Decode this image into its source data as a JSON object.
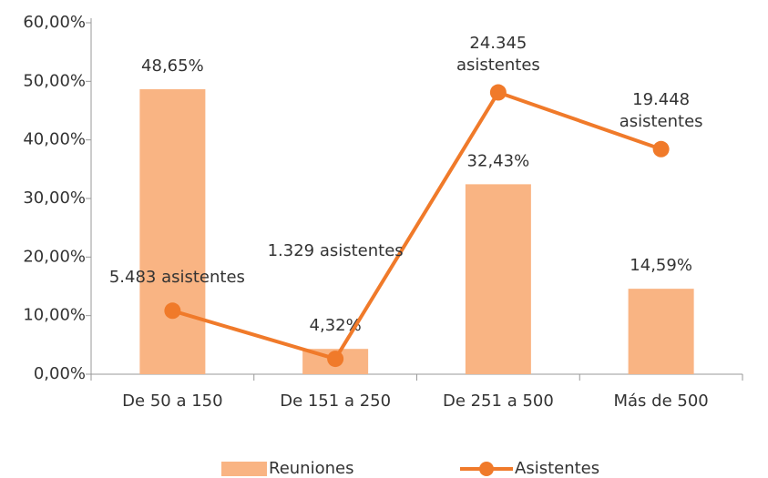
{
  "chart_data": {
    "type": "bar-line",
    "categories": [
      "De 50 a 150",
      "De 151 a 250",
      "De 251 a 500",
      "Más de 500"
    ],
    "series": [
      {
        "name": "Reuniones",
        "type": "bar",
        "color": "#f9b483",
        "values": [
          48.65,
          4.32,
          32.43,
          14.59
        ],
        "value_labels": [
          "48,65%",
          "4,32%",
          "32,43%",
          "14,59%"
        ]
      },
      {
        "name": "Asistentes",
        "type": "line",
        "axis": "y2",
        "color": "#f07a2a",
        "values": [
          5483,
          1329,
          24345,
          19448
        ],
        "value_labels": [
          "5.483 asistentes",
          "1.329 asistentes",
          "24.345 asistentes",
          "19.448 asistentes"
        ]
      }
    ],
    "ylim": [
      0,
      60
    ],
    "yticks": [
      {
        "value": 0,
        "label": "0,00%"
      },
      {
        "value": 10,
        "label": "10,00%"
      },
      {
        "value": 20,
        "label": "20,00%"
      },
      {
        "value": 30,
        "label": "30,00%"
      },
      {
        "value": 40,
        "label": "40,00%"
      },
      {
        "value": 50,
        "label": "50,00%"
      },
      {
        "value": 60,
        "label": "60,00%"
      }
    ],
    "y2lim": [
      0,
      30363
    ],
    "legend": "bottom"
  }
}
